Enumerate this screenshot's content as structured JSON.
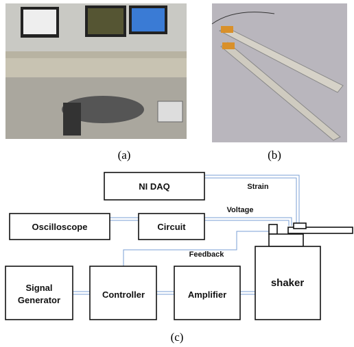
{
  "photos": [
    {
      "label": "(a)"
    },
    {
      "label": "(b)"
    }
  ],
  "diagram": {
    "label": "(c)",
    "nodes": [
      {
        "label": "NI DAQ"
      },
      {
        "label": "Oscilloscope"
      },
      {
        "label": "Circuit"
      },
      {
        "label": "Signal"
      },
      {
        "label": "Generator"
      },
      {
        "label": "Controller"
      },
      {
        "label": "Amplifier"
      },
      {
        "label": "shaker"
      }
    ],
    "edges": [
      {
        "label": "Strain"
      },
      {
        "label": "Voltage"
      },
      {
        "label": "Feedback"
      }
    ]
  }
}
